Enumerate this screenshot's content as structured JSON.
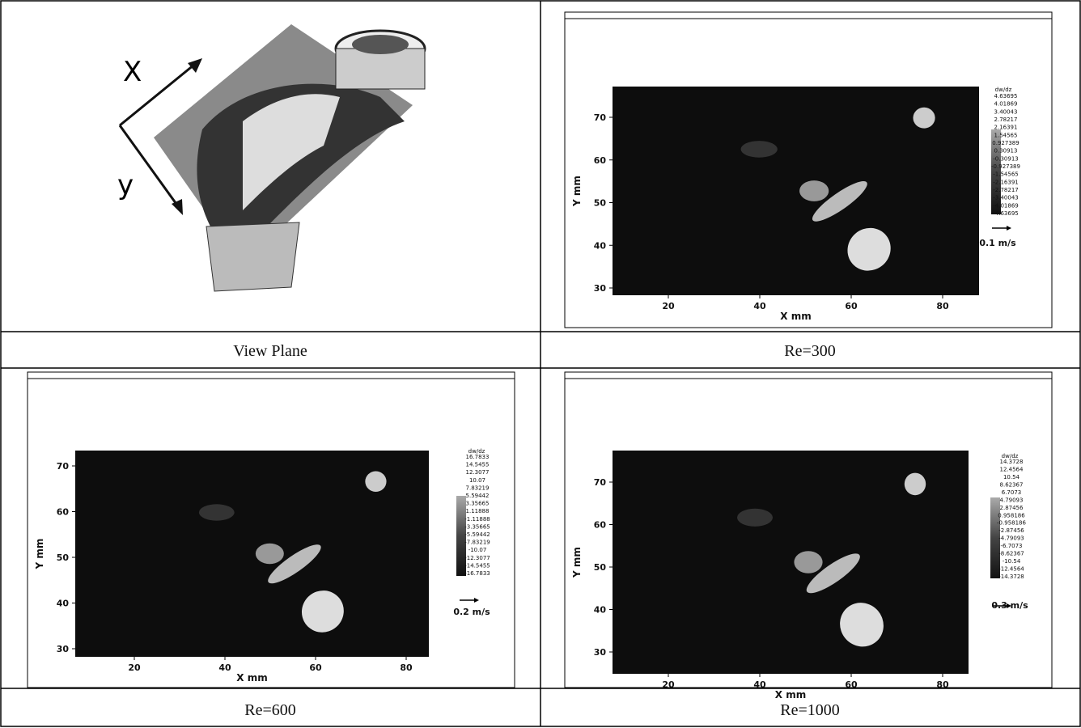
{
  "panels": [
    {
      "caption": "View Plane",
      "axis_labels": [
        "X",
        "y"
      ]
    },
    {
      "caption": "Re=300",
      "plot": {
        "xlabel": "X mm",
        "ylabel": "Y mm",
        "xticks": [
          20,
          40,
          60,
          80
        ],
        "yticks": [
          30,
          40,
          50,
          60,
          70
        ],
        "colorbar_title": "dw/dz",
        "colorbar_labels": [
          "4.63695",
          "4.01869",
          "3.40043",
          "2.78217",
          "2.16391",
          "1.54565",
          "0.927389",
          "0.30913",
          "-0.30913",
          "-0.927389",
          "-1.54565",
          "-2.16391",
          "-2.78217",
          "-3.40043",
          "-4.01869",
          "-4.63695"
        ],
        "scale": "0.1 m/s"
      }
    },
    {
      "caption": "Re=600",
      "plot": {
        "xlabel": "X mm",
        "ylabel": "Y mm",
        "xticks": [
          20,
          40,
          60,
          80
        ],
        "yticks": [
          30,
          40,
          50,
          60,
          70
        ],
        "colorbar_title": "dw/dz",
        "colorbar_labels": [
          "16.7833",
          "14.5455",
          "12.3077",
          "10.07",
          "7.83219",
          "5.59442",
          "3.35665",
          "1.11888",
          "-1.11888",
          "-3.35665",
          "-5.59442",
          "-7.83219",
          "-10.07",
          "-12.3077",
          "-14.5455",
          "-16.7833"
        ],
        "scale": "0.2 m/s"
      }
    },
    {
      "caption": "Re=1000",
      "plot": {
        "xlabel": "X mm",
        "ylabel": "Y mm",
        "xticks": [
          20,
          40,
          60,
          80
        ],
        "yticks": [
          30,
          40,
          50,
          60,
          70
        ],
        "colorbar_title": "dw/dz",
        "colorbar_labels": [
          "14.3728",
          "12.4564",
          "10.54",
          "8.62367",
          "6.7073",
          "4.79093",
          "2.87456",
          "0.958186",
          "-0.958186",
          "-2.87456",
          "-4.79093",
          "-6.7073",
          "-8.62367",
          "-10.54",
          "-12.4564",
          "-14.3728"
        ],
        "scale": "0.3 m/s"
      }
    }
  ]
}
